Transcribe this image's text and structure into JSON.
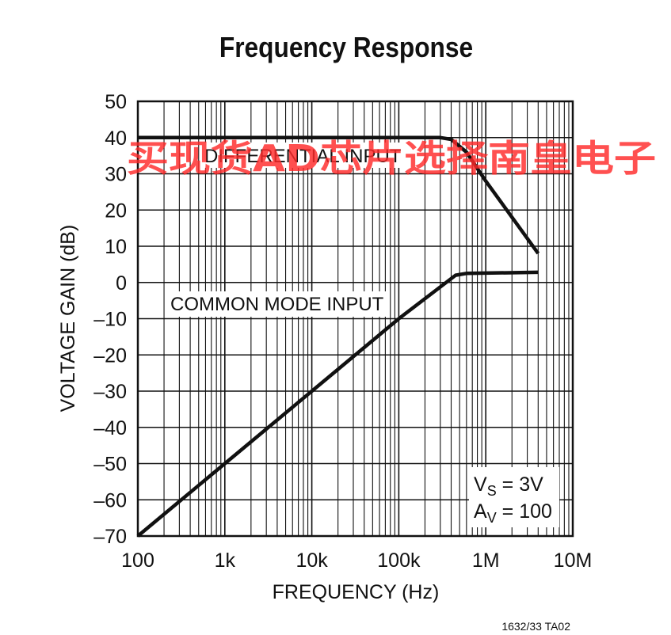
{
  "chart_data": {
    "type": "line",
    "title": "Frequency Response",
    "xlabel": "FREQUENCY (Hz)",
    "ylabel": "VOLTAGE GAIN (dB)",
    "x_scale": "log",
    "xlim": [
      100,
      10000000
    ],
    "ylim": [
      -70,
      50
    ],
    "grid": true,
    "x_ticks": [
      100,
      1000,
      10000,
      100000,
      1000000,
      10000000
    ],
    "x_tick_labels": [
      "100",
      "1k",
      "10k",
      "100k",
      "1M",
      "10M"
    ],
    "y_ticks": [
      50,
      40,
      30,
      20,
      10,
      0,
      -10,
      -20,
      -30,
      -40,
      -50,
      -60,
      -70
    ],
    "y_tick_labels": [
      "50",
      "40",
      "30",
      "20",
      "10",
      "0",
      "–10",
      "–20",
      "–30",
      "–40",
      "–50",
      "–60",
      "–70"
    ],
    "series": [
      {
        "name": "DIFFERENTIAL INPUT",
        "x": [
          100,
          300000,
          400000,
          600000,
          1000000,
          2000000,
          4000000
        ],
        "y": [
          40,
          40,
          39.5,
          36,
          28,
          18,
          8
        ]
      },
      {
        "name": "COMMON MODE INPUT",
        "x": [
          100,
          1000,
          10000,
          100000,
          450000,
          600000,
          1000000,
          4000000
        ],
        "y": [
          -70,
          -50,
          -30,
          -10,
          2,
          2.5,
          2.6,
          2.8
        ]
      }
    ],
    "annotations": {
      "vs_prefix": "V",
      "vs_sub": "S",
      "vs_value": " = 3V",
      "av_prefix": "A",
      "av_sub": "V",
      "av_value": " = 100"
    },
    "figure_code": "1632/33 TA02"
  },
  "watermark": {
    "text": "买现货AD芯片选择南皇电子",
    "color": "#ff2a2a"
  }
}
